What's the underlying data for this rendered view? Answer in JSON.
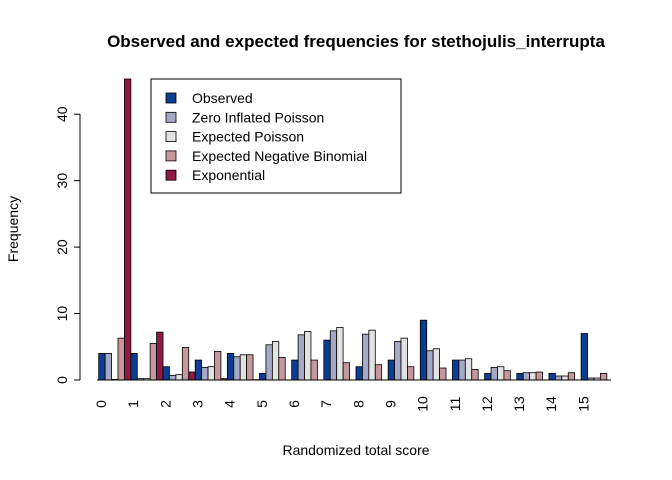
{
  "chart_data": {
    "type": "bar",
    "title": "Observed and expected frequencies for stethojulis_interrupta",
    "xlabel": "Randomized total score",
    "ylabel": "Frequency",
    "categories": [
      "0",
      "1",
      "2",
      "3",
      "4",
      "5",
      "6",
      "7",
      "8",
      "9",
      "10",
      "11",
      "12",
      "13",
      "14",
      "15"
    ],
    "ylim": [
      0,
      45
    ],
    "yticks": [
      0,
      10,
      20,
      30,
      40
    ],
    "legend_position": "top-left",
    "series": [
      {
        "name": "Observed",
        "color": "#0b3d91",
        "values": [
          4,
          4,
          2,
          3,
          4,
          1,
          3,
          6,
          2,
          3,
          9,
          3,
          1,
          1,
          1,
          7
        ]
      },
      {
        "name": "Zero Inflated Poisson",
        "color": "#a6a9c6",
        "values": [
          4,
          0.2,
          0.7,
          1.9,
          3.5,
          5.3,
          6.8,
          7.4,
          6.9,
          5.8,
          4.4,
          3.0,
          1.9,
          1.1,
          0.6,
          0.3
        ]
      },
      {
        "name": "Expected Poisson",
        "color": "#e2e2e2",
        "values": [
          0.1,
          0.2,
          0.8,
          2.0,
          3.8,
          5.8,
          7.3,
          7.9,
          7.5,
          6.3,
          4.7,
          3.2,
          2.0,
          1.1,
          0.6,
          0.3
        ]
      },
      {
        "name": "Expected Negative Binomial",
        "color": "#c6979b",
        "values": [
          6.3,
          5.5,
          4.9,
          4.3,
          3.8,
          3.4,
          3.0,
          2.6,
          2.3,
          2.0,
          1.8,
          1.6,
          1.4,
          1.2,
          1.1,
          1.0
        ]
      },
      {
        "name": "Exponential",
        "color": "#8e1a45",
        "values": [
          45.3,
          7.2,
          1.2,
          0.2,
          0.05,
          0,
          0,
          0,
          0,
          0,
          0,
          0,
          0,
          0,
          0,
          0
        ]
      }
    ]
  }
}
